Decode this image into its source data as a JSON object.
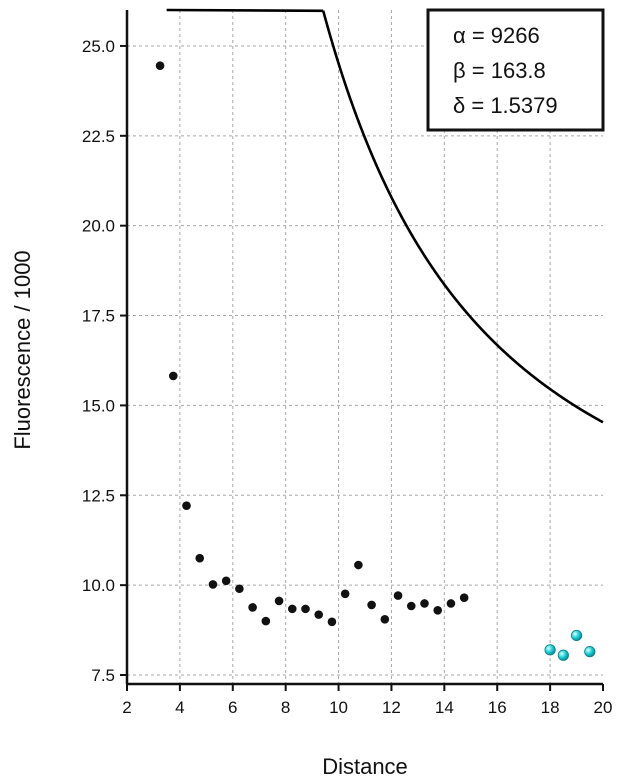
{
  "chart_data": {
    "type": "scatter",
    "xlabel": "Distance",
    "ylabel": "Fluorescence / 1000",
    "xlim": [
      2,
      20
    ],
    "ylim": [
      7.25,
      26.0
    ],
    "grid": true,
    "x_ticks": [
      2,
      4,
      6,
      8,
      10,
      12,
      14,
      16,
      18,
      20
    ],
    "x_tick_labels": [
      "2",
      "4",
      "6",
      "8",
      "10",
      "12",
      "14",
      "16",
      "18",
      "20"
    ],
    "y_ticks": [
      7.5,
      10.0,
      12.5,
      15.0,
      17.5,
      20.0,
      22.5,
      25.0
    ],
    "y_tick_labels": [
      "7.5",
      "10.0",
      "12.5",
      "15.0",
      "17.5",
      "20.0",
      "22.5",
      "25.0"
    ],
    "annotation": {
      "placement": "top-right",
      "lines": [
        "α = 9266",
        "β = 163.8",
        "δ = 1.5379"
      ]
    },
    "series": [
      {
        "marker": "black-dot",
        "x": [
          3.25,
          3.75,
          4.25,
          4.75,
          5.25,
          5.75,
          6.25,
          6.75,
          7.25,
          7.75,
          8.25,
          8.75,
          9.25,
          9.75,
          10.25,
          10.75,
          11.25,
          11.75,
          12.25,
          12.75,
          13.25,
          13.75,
          14.25,
          14.75
        ],
        "y": [
          24.45,
          15.82,
          12.21,
          10.75,
          10.02,
          10.12,
          9.9,
          9.38,
          9.0,
          9.56,
          9.34,
          9.34,
          9.18,
          8.98,
          9.76,
          10.56,
          9.45,
          9.05,
          9.71,
          9.42,
          9.49,
          9.3,
          9.49,
          9.65
        ]
      },
      {
        "marker": "cyan-sphere",
        "x": [
          18.0,
          18.5,
          19.0,
          19.5
        ],
        "y": [
          8.2,
          8.05,
          8.6,
          8.15
        ]
      }
    ],
    "fit_curve": {
      "form": "y = (alpha / x^delta + beta) * 0.0567",
      "alpha": 9266,
      "beta": 163.8,
      "delta": 1.5379,
      "color": "#000000"
    },
    "colors": {
      "points": "#111111",
      "cyan_points": "#22d0d8",
      "curve": "#000000"
    }
  }
}
